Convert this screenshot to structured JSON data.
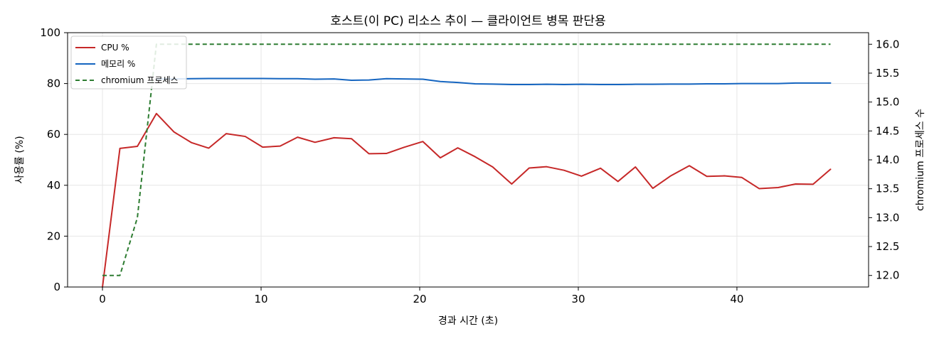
{
  "chart_data": {
    "type": "line",
    "title": "호스트(이 PC) 리소스 추이 — 클라이언트 병목 판단용",
    "xlabel": "경과 시간 (초)",
    "ylabel": "사용률 (%)",
    "y2label": "chromium 프로세스 수",
    "xlim": [
      -2.2,
      48.3
    ],
    "ylim": [
      0,
      100
    ],
    "y2lim": [
      11.8,
      16.2
    ],
    "x_ticks": [
      0,
      10,
      20,
      30,
      40
    ],
    "y_ticks": [
      0,
      20,
      40,
      60,
      80,
      100
    ],
    "y2_ticks": [
      12.0,
      12.5,
      13.0,
      13.5,
      14.0,
      14.5,
      15.0,
      15.5,
      16.0
    ],
    "grid": true,
    "legend_position": "top-left",
    "series": [
      {
        "name": "CPU %",
        "axis": "left",
        "color": "#c62828",
        "dash": "solid",
        "x": [
          0,
          1.1,
          2.2,
          3.4,
          4.5,
          5.6,
          6.7,
          7.8,
          9.0,
          10.1,
          11.2,
          12.3,
          13.4,
          14.6,
          15.7,
          16.8,
          17.9,
          19.0,
          20.2,
          21.3,
          22.4,
          23.5,
          24.6,
          25.8,
          26.9,
          28.0,
          29.1,
          30.2,
          31.4,
          32.5,
          33.6,
          34.7,
          35.8,
          37.0,
          38.1,
          39.2,
          40.3,
          41.4,
          42.6,
          43.7,
          44.8,
          45.9
        ],
        "values": [
          0,
          54.5,
          55.3,
          68.2,
          61.0,
          56.8,
          54.6,
          60.3,
          59.2,
          55.0,
          55.4,
          58.9,
          56.9,
          58.7,
          58.3,
          52.4,
          52.5,
          54.9,
          57.2,
          50.8,
          54.7,
          51.2,
          47.2,
          40.5,
          46.8,
          47.3,
          45.9,
          43.6,
          46.7,
          41.5,
          47.2,
          38.8,
          43.6,
          47.7,
          43.5,
          43.7,
          43.1,
          38.7,
          39.1,
          40.5,
          40.4,
          46.3
        ]
      },
      {
        "name": "메모리 %",
        "axis": "left",
        "color": "#1565c0",
        "dash": "solid",
        "x": [
          3.4,
          4.5,
          5.6,
          6.7,
          7.8,
          9.0,
          10.1,
          11.2,
          12.3,
          13.4,
          14.6,
          15.7,
          16.8,
          17.9,
          19.0,
          20.2,
          21.3,
          22.4,
          23.5,
          24.6,
          25.8,
          26.9,
          28.0,
          29.1,
          30.2,
          31.4,
          32.5,
          33.6,
          34.7,
          35.8,
          37.0,
          38.1,
          39.2,
          40.3,
          41.4,
          42.6,
          43.7,
          44.8,
          45.9
        ],
        "values": [
          81.8,
          81.8,
          81.9,
          82.0,
          82.0,
          82.0,
          82.0,
          81.9,
          81.9,
          81.7,
          81.8,
          81.3,
          81.4,
          81.9,
          81.8,
          81.7,
          80.8,
          80.4,
          79.9,
          79.8,
          79.6,
          79.6,
          79.7,
          79.6,
          79.7,
          79.6,
          79.6,
          79.7,
          79.7,
          79.8,
          79.8,
          79.9,
          79.9,
          80.0,
          80.0,
          80.0,
          80.2,
          80.2,
          80.2
        ]
      },
      {
        "name": "chromium 프로세스",
        "axis": "right",
        "color": "#2e7d32",
        "dash": "dashed",
        "x": [
          0,
          1.1,
          2.2,
          3.4,
          4.5,
          5.6,
          6.7,
          7.8,
          9.0,
          10.1,
          11.2,
          12.3,
          13.4,
          14.6,
          15.7,
          16.8,
          17.9,
          19.0,
          20.2,
          21.3,
          22.4,
          23.5,
          24.6,
          25.8,
          26.9,
          28.0,
          29.1,
          30.2,
          31.4,
          32.5,
          33.6,
          34.7,
          35.8,
          37.0,
          38.1,
          39.2,
          40.3,
          41.4,
          42.6,
          43.7,
          44.8,
          45.9
        ],
        "values": [
          12,
          12,
          13,
          16,
          16,
          16,
          16,
          16,
          16,
          16,
          16,
          16,
          16,
          16,
          16,
          16,
          16,
          16,
          16,
          16,
          16,
          16,
          16,
          16,
          16,
          16,
          16,
          16,
          16,
          16,
          16,
          16,
          16,
          16,
          16,
          16,
          16,
          16,
          16,
          16,
          16,
          16
        ]
      }
    ]
  }
}
